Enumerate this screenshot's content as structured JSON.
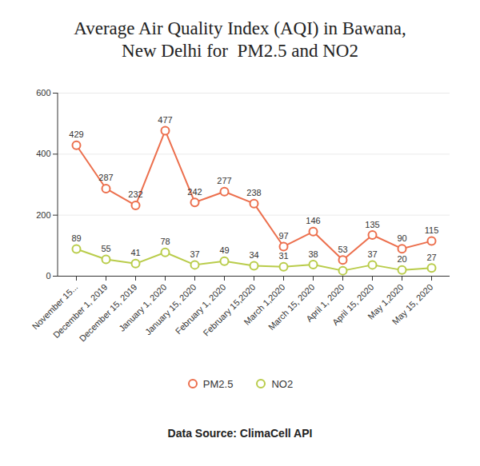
{
  "chart_data": {
    "type": "line",
    "title": "Average Air Quality Index (AQI) in Bawana,\nNew Delhi for  PM2.5 and NO2",
    "caption": "Data Source: ClimaCell API",
    "categories": [
      "November 15...",
      "December 1, 2019",
      "December 15, 2019",
      "January 1, 2020",
      "January 15, 2020",
      "February 1, 2020",
      "February 15,2020",
      "March 1,2020",
      "March 15, 2020",
      "April 1, 2020",
      "April 15, 2020",
      "May 1,2020",
      "May 15, 2020"
    ],
    "series": [
      {
        "name": "PM2.5",
        "color": "#ec6f4d",
        "marker": "circle",
        "values": [
          429,
          287,
          232,
          477,
          242,
          277,
          238,
          97,
          146,
          53,
          135,
          90,
          115
        ]
      },
      {
        "name": "NO2",
        "color": "#b9cc4a",
        "marker": "circle",
        "values": [
          89,
          55,
          41,
          78,
          37,
          49,
          34,
          31,
          38,
          18,
          37,
          20,
          27
        ],
        "value_labels": [
          "89",
          "55",
          "41",
          "78",
          "37",
          "49",
          "34",
          "31",
          "38",
          null,
          "37",
          "20",
          "27"
        ]
      }
    ],
    "ylim": [
      0,
      600
    ],
    "yticks": [
      0,
      200,
      400,
      600
    ],
    "grid": true,
    "data_labels": true,
    "legend": "bottom"
  }
}
